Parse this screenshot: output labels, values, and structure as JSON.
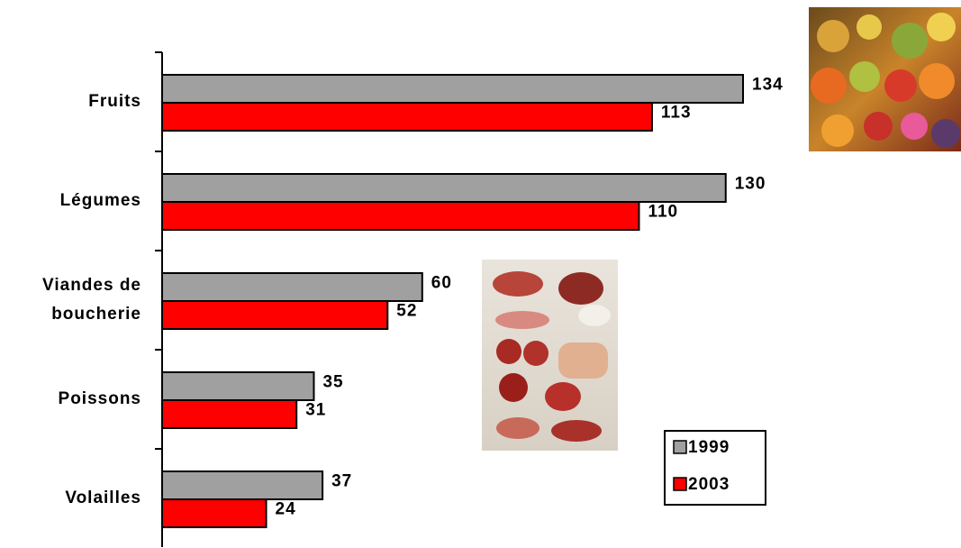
{
  "chart_data": {
    "type": "bar",
    "orientation": "horizontal",
    "categories": [
      "Fruits",
      "Légumes",
      "Viandes de boucherie",
      "Poissons",
      "Volailles"
    ],
    "series": [
      {
        "name": "1999",
        "color": "#a0a0a0",
        "values": [
          134,
          130,
          60,
          35,
          37
        ]
      },
      {
        "name": "2003",
        "color": "#ff0000",
        "values": [
          113,
          110,
          52,
          31,
          24
        ]
      }
    ]
  }
}
